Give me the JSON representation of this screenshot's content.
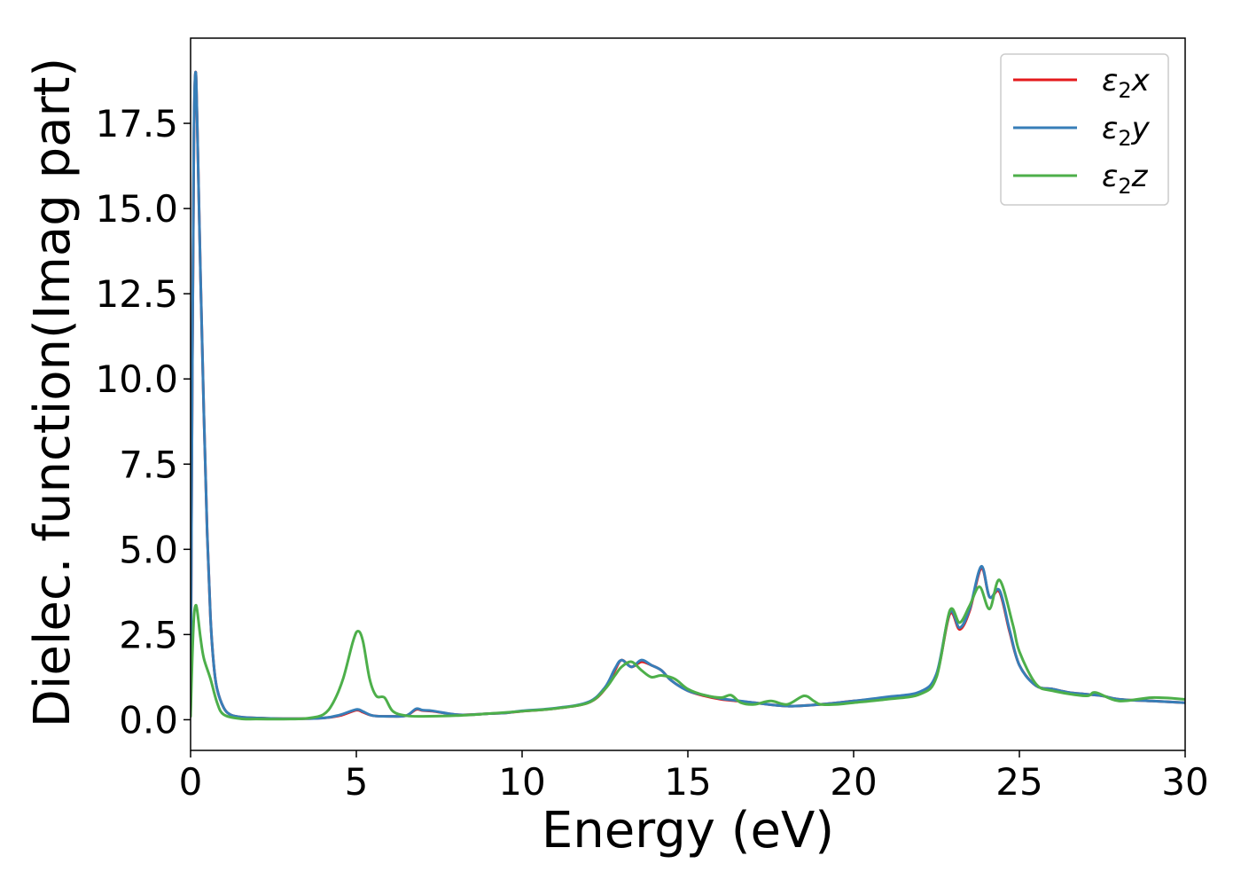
{
  "chart_data": {
    "type": "line",
    "xlabel": "Energy (eV)",
    "ylabel": "Dielec. function(Imag part)",
    "xlim": [
      0,
      30
    ],
    "ylim": [
      -0.9,
      20
    ],
    "xticks": [
      0,
      5,
      10,
      15,
      20,
      25,
      30
    ],
    "xtick_labels": [
      "0",
      "5",
      "10",
      "15",
      "20",
      "25",
      "30"
    ],
    "yticks": [
      0,
      2.5,
      5,
      7.5,
      10,
      12.5,
      15,
      17.5
    ],
    "ytick_labels": [
      "0.0",
      "2.5",
      "5.0",
      "7.5",
      "10.0",
      "12.5",
      "15.0",
      "17.5"
    ],
    "grid": false,
    "legend_position": "top-right",
    "series": [
      {
        "name": "ε2x",
        "legend_base": "ε",
        "legend_sub": "2",
        "legend_suffix": "x",
        "color": "#e41a1c",
        "x": [
          0,
          0.05,
          0.1,
          0.15,
          0.2,
          0.3,
          0.4,
          0.5,
          0.6,
          0.7,
          0.8,
          1.0,
          1.2,
          1.5,
          2.0,
          3.0,
          4.0,
          4.5,
          5.0,
          5.2,
          5.5,
          6.0,
          6.5,
          6.8,
          7.0,
          7.3,
          8.0,
          8.5,
          9.0,
          9.5,
          10.0,
          11.0,
          12.0,
          12.5,
          12.8,
          13.0,
          13.3,
          13.6,
          13.9,
          14.2,
          14.5,
          15.0,
          15.5,
          16.0,
          16.5,
          17.0,
          18.0,
          19.0,
          20.0,
          21.0,
          22.0,
          22.5,
          22.9,
          23.2,
          23.5,
          23.85,
          24.1,
          24.4,
          24.7,
          25.0,
          25.5,
          26.0,
          26.5,
          27.0,
          27.5,
          28.0,
          29.0,
          30.0
        ],
        "y": [
          0.2,
          10.0,
          17.0,
          19.0,
          17.5,
          13.0,
          9.0,
          5.5,
          3.0,
          1.6,
          0.9,
          0.35,
          0.15,
          0.08,
          0.05,
          0.03,
          0.05,
          0.12,
          0.28,
          0.22,
          0.12,
          0.1,
          0.12,
          0.3,
          0.27,
          0.25,
          0.15,
          0.15,
          0.18,
          0.2,
          0.25,
          0.33,
          0.5,
          0.9,
          1.45,
          1.75,
          1.55,
          1.7,
          1.6,
          1.45,
          1.15,
          0.85,
          0.7,
          0.6,
          0.55,
          0.5,
          0.4,
          0.45,
          0.55,
          0.65,
          0.8,
          1.3,
          3.1,
          2.65,
          3.2,
          4.45,
          3.6,
          3.75,
          2.6,
          1.6,
          1.0,
          0.9,
          0.8,
          0.75,
          0.7,
          0.6,
          0.55,
          0.5
        ]
      },
      {
        "name": "ε2y",
        "legend_base": "ε",
        "legend_sub": "2",
        "legend_suffix": "y",
        "color": "#377eb8",
        "x": [
          0,
          0.05,
          0.1,
          0.15,
          0.2,
          0.3,
          0.4,
          0.5,
          0.6,
          0.7,
          0.8,
          1.0,
          1.2,
          1.5,
          2.0,
          3.0,
          4.0,
          4.5,
          5.0,
          5.2,
          5.5,
          6.0,
          6.5,
          6.8,
          7.0,
          7.3,
          8.0,
          8.5,
          9.0,
          9.5,
          10.0,
          11.0,
          12.0,
          12.5,
          12.8,
          13.0,
          13.3,
          13.6,
          13.9,
          14.2,
          14.5,
          15.0,
          15.5,
          16.0,
          16.5,
          17.0,
          18.0,
          19.0,
          20.0,
          21.0,
          22.0,
          22.5,
          22.9,
          23.2,
          23.5,
          23.85,
          24.1,
          24.4,
          24.7,
          25.0,
          25.5,
          26.0,
          26.5,
          27.0,
          27.5,
          28.0,
          29.0,
          30.0
        ],
        "y": [
          0.2,
          10.0,
          17.2,
          19.0,
          17.5,
          13.0,
          9.0,
          5.5,
          3.0,
          1.6,
          0.9,
          0.35,
          0.15,
          0.08,
          0.05,
          0.03,
          0.05,
          0.14,
          0.3,
          0.24,
          0.12,
          0.1,
          0.12,
          0.32,
          0.28,
          0.26,
          0.15,
          0.15,
          0.18,
          0.2,
          0.26,
          0.34,
          0.52,
          0.95,
          1.5,
          1.75,
          1.55,
          1.75,
          1.6,
          1.45,
          1.15,
          0.85,
          0.72,
          0.62,
          0.56,
          0.5,
          0.4,
          0.45,
          0.55,
          0.67,
          0.82,
          1.35,
          3.15,
          2.7,
          3.25,
          4.5,
          3.6,
          3.8,
          2.65,
          1.6,
          1.0,
          0.9,
          0.8,
          0.75,
          0.7,
          0.6,
          0.55,
          0.5
        ]
      },
      {
        "name": "ε2z",
        "legend_base": "ε",
        "legend_sub": "2",
        "legend_suffix": "z",
        "color": "#4daf4a",
        "x": [
          0,
          0.05,
          0.1,
          0.15,
          0.2,
          0.3,
          0.4,
          0.6,
          0.8,
          1.0,
          1.5,
          2.0,
          3.0,
          3.5,
          4.0,
          4.3,
          4.6,
          4.9,
          5.05,
          5.2,
          5.4,
          5.6,
          5.85,
          6.1,
          6.5,
          7.0,
          8.0,
          9.0,
          10.0,
          11.0,
          12.0,
          12.5,
          12.8,
          13.0,
          13.3,
          13.6,
          13.9,
          14.2,
          14.6,
          15.0,
          15.5,
          16.0,
          16.3,
          16.6,
          17.0,
          17.5,
          18.0,
          18.5,
          18.8,
          19.0,
          19.5,
          20.0,
          21.0,
          22.0,
          22.5,
          22.9,
          23.2,
          23.5,
          23.8,
          24.1,
          24.4,
          24.8,
          25.0,
          25.5,
          26.0,
          27.0,
          27.3,
          28.0,
          29.0,
          30.0
        ],
        "y": [
          0.1,
          1.8,
          3.0,
          3.35,
          3.2,
          2.4,
          1.8,
          1.2,
          0.5,
          0.15,
          0.03,
          0.02,
          0.02,
          0.04,
          0.15,
          0.5,
          1.2,
          2.3,
          2.6,
          2.3,
          1.2,
          0.7,
          0.65,
          0.25,
          0.12,
          0.1,
          0.12,
          0.18,
          0.25,
          0.33,
          0.5,
          0.9,
          1.3,
          1.55,
          1.7,
          1.45,
          1.25,
          1.3,
          1.2,
          0.9,
          0.72,
          0.65,
          0.72,
          0.5,
          0.45,
          0.55,
          0.45,
          0.7,
          0.55,
          0.45,
          0.45,
          0.5,
          0.6,
          0.75,
          1.25,
          3.2,
          2.85,
          3.35,
          3.9,
          3.25,
          4.1,
          2.8,
          2.0,
          1.05,
          0.85,
          0.7,
          0.8,
          0.55,
          0.65,
          0.6
        ]
      }
    ]
  }
}
